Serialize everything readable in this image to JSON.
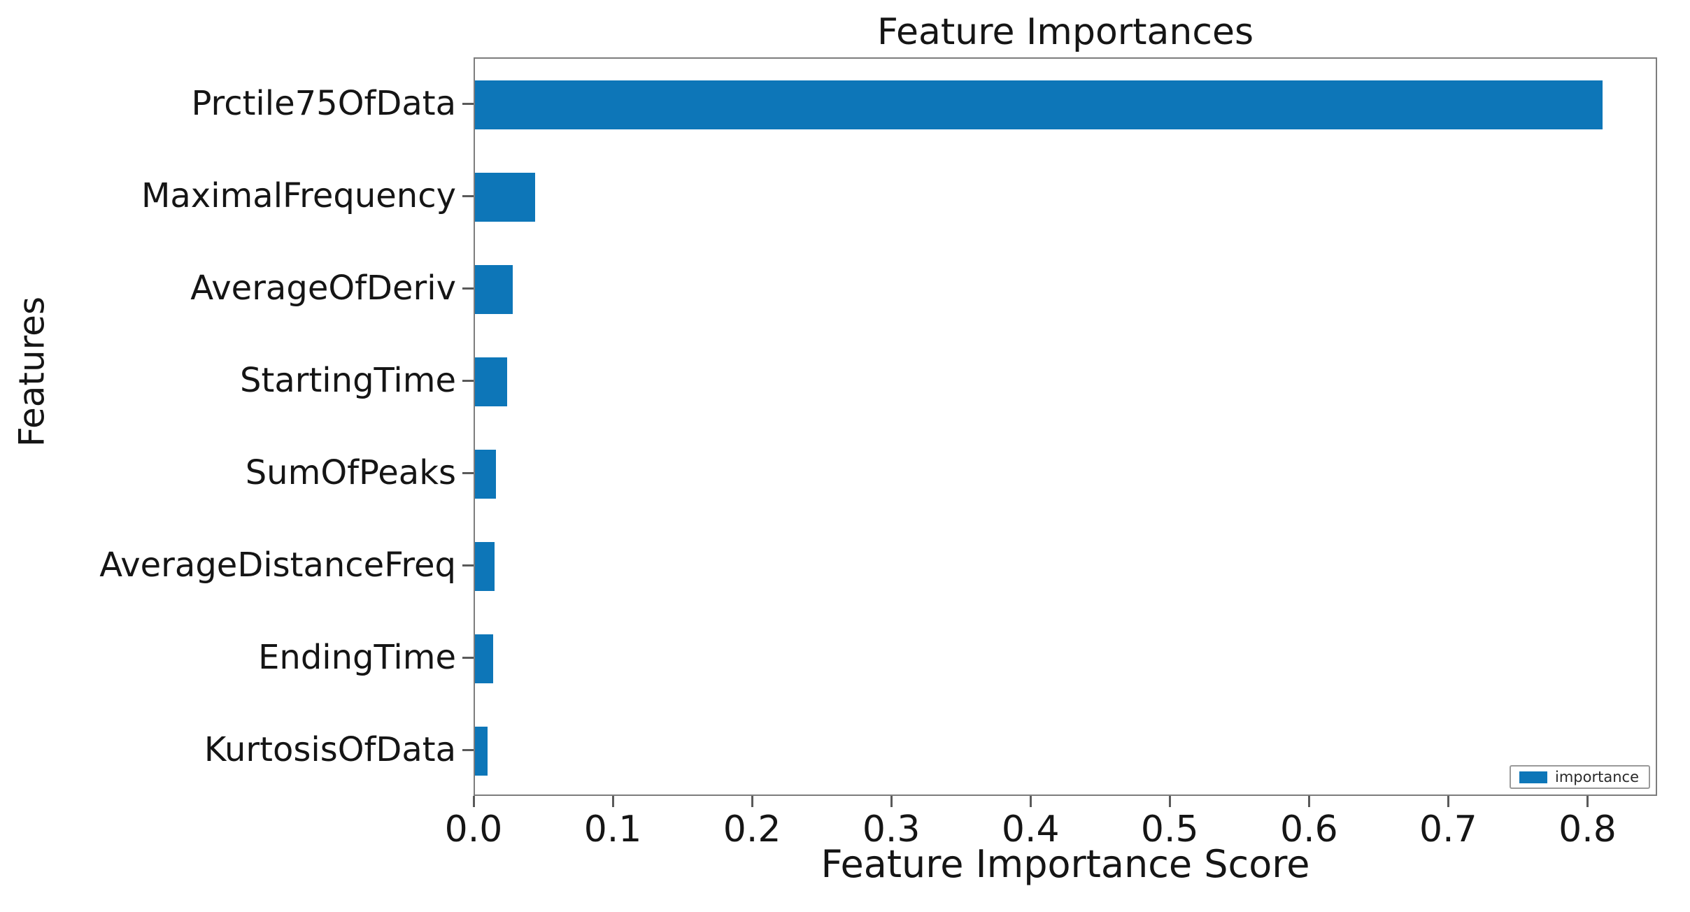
{
  "chart_data": {
    "type": "bar",
    "orientation": "horizontal",
    "title": "Feature Importances",
    "xlabel": "Feature Importance Score",
    "ylabel": "Features",
    "categories": [
      "Prctile75OfData",
      "MaximalFrequency",
      "AverageOfDeriv",
      "StartingTime",
      "SumOfPeaks",
      "AverageDistanceFreq",
      "EndingTime",
      "KurtosisOfData"
    ],
    "values": [
      0.81,
      0.043,
      0.027,
      0.023,
      0.015,
      0.014,
      0.013,
      0.009
    ],
    "series_name": "importance",
    "x_ticks": [
      "0.0",
      "0.1",
      "0.2",
      "0.3",
      "0.4",
      "0.5",
      "0.6",
      "0.7",
      "0.8"
    ],
    "x_tick_values": [
      0.0,
      0.1,
      0.2,
      0.3,
      0.4,
      0.5,
      0.6,
      0.7,
      0.8
    ],
    "xlim": [
      0.0,
      0.85
    ],
    "bar_color": "#0d76b8",
    "legend_position": "lower right",
    "grid": false
  }
}
